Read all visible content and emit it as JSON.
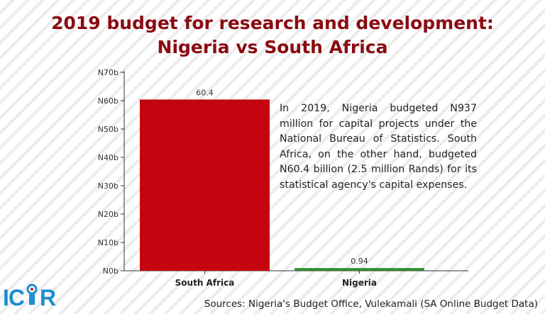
{
  "chart_data": {
    "type": "bar",
    "title_line1": "2019 budget for research and development:",
    "title_line2": "Nigeria vs South Africa",
    "categories": [
      "South Africa",
      "Nigeria"
    ],
    "values": [
      60.4,
      0.94
    ],
    "data_labels": [
      "60.4",
      "0.94"
    ],
    "bar_colors": [
      "#c4040f",
      "#2e8b2e"
    ],
    "ylim": [
      0,
      70
    ],
    "yticks": [
      0,
      10,
      20,
      30,
      40,
      50,
      60,
      70
    ],
    "ytick_labels": [
      "N0b",
      "N10b",
      "N20b",
      "N30b",
      "N40b",
      "N50b",
      "N60b",
      "N70b"
    ],
    "xlabel": "",
    "ylabel": "",
    "grid": false
  },
  "annotation": "In 2019, Nigeria budgeted N937 million for capital projects under the National Bureau of Statistics. South Africa, on the other hand, budgeted N60.4 billion (2.5 million Rands) for its statistical agency's capital expenses.",
  "source": "Sources: Nigeria's Budget Office, Vulekamali (SA Online Budget Data)",
  "logo": {
    "text": "ICIR",
    "prefix": "IC",
    "suffix": "R"
  },
  "colors": {
    "title": "#8b0b12",
    "logo": "#1b8fd0"
  }
}
